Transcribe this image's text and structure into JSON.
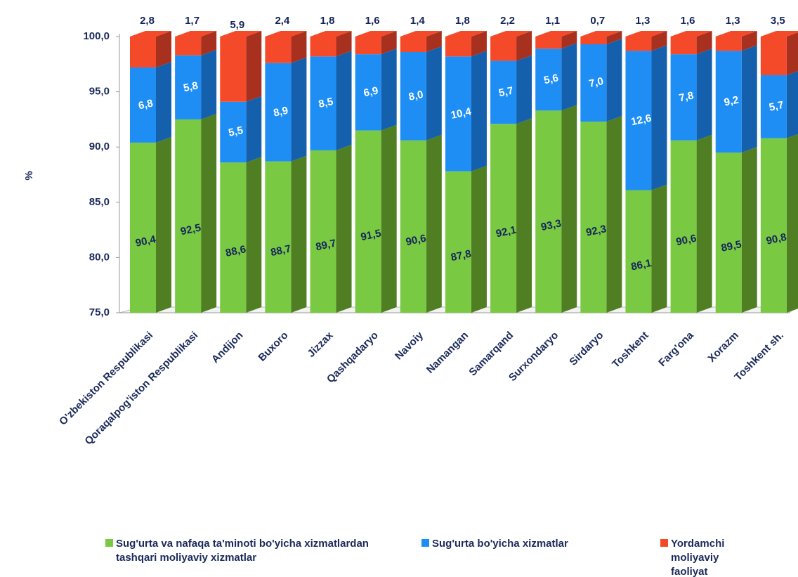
{
  "chart_data": {
    "type": "stacked-bar-3d",
    "y_label": "%",
    "categories": [
      "O'zbekiston Respublikasi",
      "Qoraqalpog'iston Respublikasi",
      "Andijon",
      "Buxoro",
      "Jizzax",
      "Qashqadaryo",
      "Navoiy",
      "Namangan",
      "Samarqand",
      "Surxondaryo",
      "Sirdaryo",
      "Toshkent",
      "Farg'ona",
      "Xorazm",
      "Toshkent sh."
    ],
    "series": [
      {
        "name": "Sug'urta va nafaqa ta'minoti bo'yicha xizmatlardan tashqari moliyaviy xizmatlar",
        "color": "#7ac943",
        "side_color": "#4f7f22",
        "label_color": "#14235c",
        "values": [
          90.4,
          92.5,
          88.6,
          88.7,
          89.7,
          91.5,
          90.6,
          87.8,
          92.1,
          93.3,
          92.3,
          86.1,
          90.6,
          89.5,
          90.8
        ],
        "value_labels": [
          "90,4",
          "92,5",
          "88,6",
          "88,7",
          "89,7",
          "91,5",
          "90,6",
          "87,8",
          "92,1",
          "93,3",
          "92,3",
          "86,1",
          "90,6",
          "89,5",
          "90,8"
        ]
      },
      {
        "name": "Sug'urta bo'yicha xizmatlar",
        "color": "#1e8ef5",
        "side_color": "#1560ad",
        "label_color": "#ffffff",
        "values": [
          6.8,
          5.8,
          5.5,
          8.9,
          8.5,
          6.9,
          8.0,
          10.4,
          5.7,
          5.6,
          7.0,
          12.6,
          7.8,
          9.2,
          5.7
        ],
        "value_labels": [
          "6,8",
          "5,8",
          "5,5",
          "8,9",
          "8,5",
          "6,9",
          "8,0",
          "10,4",
          "5,7",
          "5,6",
          "7,0",
          "12,6",
          "7,8",
          "9,2",
          "5,7"
        ]
      },
      {
        "name": "Yordamchi moliyaviy faoliyat",
        "color": "#f44a2a",
        "side_color": "#a8301f",
        "label_color": "#14235c",
        "values": [
          2.8,
          1.7,
          5.9,
          2.4,
          1.8,
          1.6,
          1.4,
          1.8,
          2.2,
          1.1,
          0.7,
          1.3,
          1.6,
          1.3,
          3.5
        ],
        "value_labels": [
          "2,8",
          "1,7",
          "5,9",
          "2,4",
          "1,8",
          "1,6",
          "1,4",
          "1,8",
          "2,2",
          "1,1",
          "0,7",
          "1,3",
          "1,6",
          "1,3",
          "3,5"
        ]
      }
    ],
    "ylim": [
      75,
      100
    ],
    "yticks": [
      {
        "value": 75,
        "label": "75,0"
      },
      {
        "value": 80,
        "label": "80,0"
      },
      {
        "value": 85,
        "label": "85,0"
      },
      {
        "value": 90,
        "label": "90,0"
      },
      {
        "value": 95,
        "label": "95,0"
      },
      {
        "value": 100,
        "label": "100,0"
      }
    ]
  }
}
